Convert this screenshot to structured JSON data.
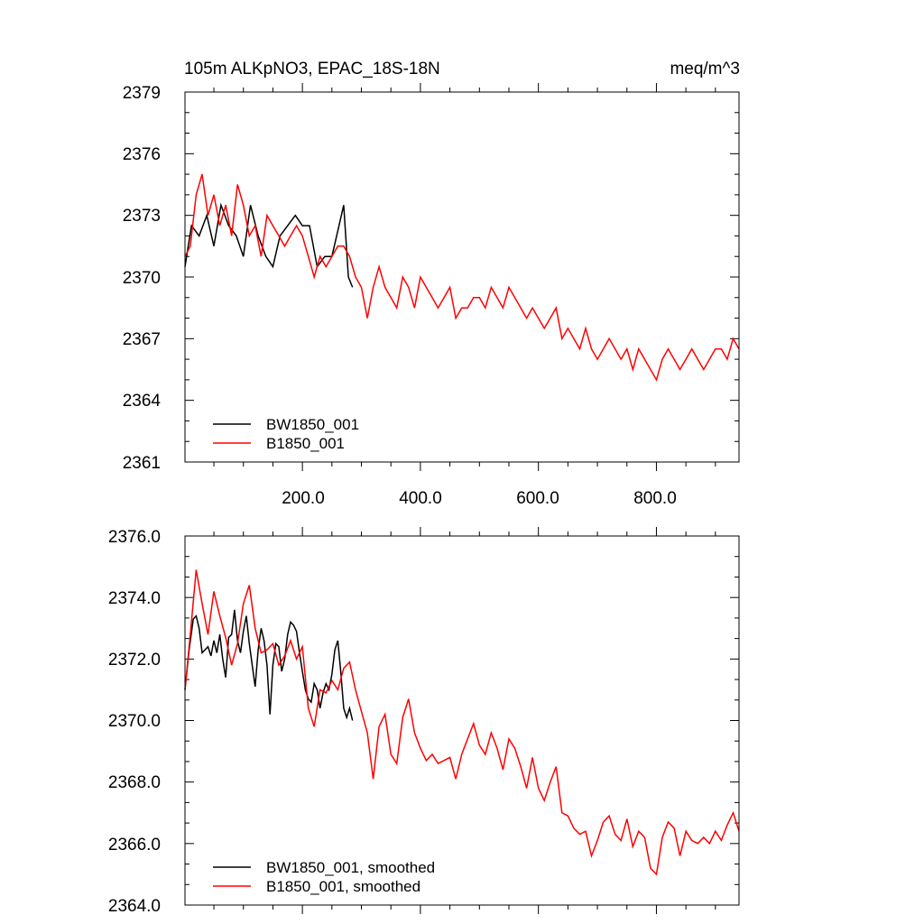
{
  "chart_data": [
    {
      "type": "line",
      "title": "105m ALKpNO3, EPAC_18S-18N",
      "units": "meq/m^3",
      "xlim": [
        1,
        940
      ],
      "ylim": [
        2361,
        2379
      ],
      "xticks": [
        200,
        400,
        600,
        800
      ],
      "xtick_labels": [
        "200.0",
        "400.0",
        "600.0",
        "800.0"
      ],
      "yticks": [
        2361,
        2364,
        2367,
        2370,
        2373,
        2376,
        2379
      ],
      "ytick_labels": [
        "2361",
        "2364",
        "2367",
        "2370",
        "2373",
        "2376",
        "2379"
      ],
      "legend_position": "bottom-left",
      "series": [
        {
          "name": "BW1850_001",
          "color": "#000000",
          "x": [
            1,
            12,
            25,
            38,
            50,
            62,
            75,
            88,
            100,
            112,
            125,
            138,
            150,
            162,
            175,
            188,
            200,
            212,
            225,
            238,
            250,
            262,
            270,
            278,
            285
          ],
          "y": [
            2370.5,
            2372.5,
            2372.0,
            2373.0,
            2371.5,
            2373.5,
            2372.5,
            2372.0,
            2371.0,
            2373.5,
            2372.0,
            2371.0,
            2370.5,
            2372.0,
            2372.5,
            2373.0,
            2372.5,
            2372.5,
            2370.5,
            2371.0,
            2371.0,
            2372.5,
            2373.5,
            2370.0,
            2369.5
          ]
        },
        {
          "name": "B1850_001",
          "color": "#ff0000",
          "x": [
            1,
            10,
            20,
            30,
            40,
            50,
            60,
            70,
            80,
            90,
            100,
            110,
            120,
            130,
            140,
            150,
            160,
            170,
            180,
            190,
            200,
            210,
            220,
            230,
            240,
            250,
            260,
            270,
            280,
            290,
            300,
            310,
            320,
            330,
            340,
            350,
            360,
            370,
            380,
            390,
            400,
            410,
            420,
            430,
            440,
            450,
            460,
            470,
            480,
            490,
            500,
            510,
            520,
            530,
            540,
            550,
            560,
            570,
            580,
            590,
            600,
            610,
            620,
            630,
            640,
            650,
            660,
            670,
            680,
            690,
            700,
            710,
            720,
            730,
            740,
            750,
            760,
            770,
            780,
            790,
            800,
            810,
            820,
            830,
            840,
            850,
            860,
            870,
            880,
            890,
            900,
            910,
            920,
            930,
            940
          ],
          "y": [
            2371.0,
            2371.5,
            2374.0,
            2375.0,
            2373.0,
            2374.0,
            2372.5,
            2373.5,
            2372.0,
            2374.5,
            2373.5,
            2372.0,
            2372.5,
            2371.0,
            2373.0,
            2372.5,
            2372.0,
            2371.5,
            2372.0,
            2372.5,
            2372.0,
            2371.0,
            2370.0,
            2371.0,
            2370.5,
            2371.0,
            2371.5,
            2371.5,
            2371.0,
            2370.0,
            2369.5,
            2368.0,
            2369.5,
            2370.5,
            2369.5,
            2369.0,
            2368.5,
            2370.0,
            2369.5,
            2368.5,
            2370.0,
            2369.5,
            2369.0,
            2368.5,
            2369.0,
            2369.5,
            2368.0,
            2368.5,
            2368.5,
            2369.0,
            2369.0,
            2368.5,
            2369.5,
            2369.0,
            2368.5,
            2369.5,
            2369.0,
            2368.5,
            2368.0,
            2368.5,
            2368.0,
            2367.5,
            2368.0,
            2368.5,
            2367.0,
            2367.5,
            2367.0,
            2366.5,
            2367.5,
            2366.5,
            2366.0,
            2366.5,
            2367.0,
            2366.5,
            2366.0,
            2366.5,
            2365.5,
            2366.5,
            2366.0,
            2365.5,
            2365.0,
            2366.0,
            2366.5,
            2366.0,
            2365.5,
            2366.0,
            2366.5,
            2366.0,
            2365.5,
            2366.0,
            2366.5,
            2366.5,
            2366.0,
            2367.0,
            2366.5
          ]
        }
      ]
    },
    {
      "type": "line",
      "xlim": [
        1,
        940
      ],
      "ylim": [
        2364,
        2376
      ],
      "yticks": [
        2364,
        2366,
        2368,
        2370,
        2372,
        2374,
        2376
      ],
      "ytick_labels": [
        "2364.0",
        "2366.0",
        "2368.0",
        "2370.0",
        "2372.0",
        "2374.0",
        "2376.0"
      ],
      "legend_position": "bottom-left",
      "series": [
        {
          "name": "BW1850_001, smoothed",
          "color": "#000000",
          "x": [
            1,
            8,
            15,
            20,
            25,
            30,
            35,
            40,
            45,
            50,
            55,
            60,
            65,
            70,
            75,
            80,
            85,
            90,
            95,
            100,
            105,
            110,
            115,
            120,
            125,
            130,
            135,
            140,
            145,
            150,
            155,
            160,
            165,
            170,
            175,
            180,
            185,
            190,
            195,
            200,
            205,
            210,
            215,
            220,
            225,
            230,
            235,
            240,
            245,
            250,
            255,
            260,
            265,
            270,
            275,
            280,
            285
          ],
          "y": [
            2371.0,
            2372.3,
            2373.3,
            2373.4,
            2373.0,
            2372.2,
            2372.3,
            2372.4,
            2372.1,
            2372.6,
            2372.2,
            2372.8,
            2372.0,
            2371.4,
            2372.7,
            2372.8,
            2373.6,
            2372.6,
            2372.2,
            2372.9,
            2373.4,
            2372.5,
            2371.8,
            2371.1,
            2372.3,
            2373.0,
            2372.6,
            2371.8,
            2370.2,
            2371.8,
            2372.5,
            2372.4,
            2371.6,
            2372.0,
            2372.8,
            2373.2,
            2373.1,
            2372.9,
            2372.2,
            2371.6,
            2371.0,
            2370.7,
            2370.6,
            2371.2,
            2371.0,
            2370.4,
            2370.9,
            2371.2,
            2371.0,
            2371.5,
            2372.3,
            2372.6,
            2371.6,
            2370.4,
            2370.1,
            2370.4,
            2370.0
          ]
        },
        {
          "name": "B1850_001, smoothed",
          "color": "#ff0000",
          "x": [
            1,
            10,
            20,
            30,
            40,
            50,
            60,
            70,
            80,
            90,
            100,
            110,
            120,
            130,
            140,
            150,
            160,
            170,
            180,
            190,
            200,
            210,
            220,
            230,
            240,
            250,
            260,
            270,
            280,
            290,
            300,
            310,
            320,
            330,
            340,
            350,
            360,
            370,
            380,
            390,
            400,
            410,
            420,
            430,
            440,
            450,
            460,
            470,
            480,
            490,
            500,
            510,
            520,
            530,
            540,
            550,
            560,
            570,
            580,
            590,
            600,
            610,
            620,
            630,
            640,
            650,
            660,
            670,
            680,
            690,
            700,
            710,
            720,
            730,
            740,
            750,
            760,
            770,
            780,
            790,
            800,
            810,
            820,
            830,
            840,
            850,
            860,
            870,
            880,
            890,
            900,
            910,
            920,
            930,
            940
          ],
          "y": [
            2371.0,
            2372.8,
            2374.9,
            2373.8,
            2372.8,
            2374.2,
            2373.4,
            2372.7,
            2371.8,
            2372.5,
            2373.8,
            2374.4,
            2373.0,
            2372.2,
            2372.3,
            2372.5,
            2371.8,
            2372.1,
            2372.6,
            2372.0,
            2372.4,
            2370.4,
            2369.8,
            2371.0,
            2370.9,
            2371.3,
            2371.0,
            2371.7,
            2371.9,
            2371.0,
            2370.3,
            2369.6,
            2368.1,
            2369.8,
            2370.2,
            2368.9,
            2368.6,
            2370.1,
            2370.7,
            2369.6,
            2369.1,
            2368.7,
            2368.9,
            2368.6,
            2368.7,
            2368.8,
            2368.1,
            2368.9,
            2369.4,
            2369.9,
            2369.2,
            2368.9,
            2369.6,
            2369.1,
            2368.4,
            2369.4,
            2369.1,
            2368.5,
            2367.8,
            2368.8,
            2367.8,
            2367.4,
            2368.0,
            2368.5,
            2367.0,
            2366.9,
            2366.5,
            2366.3,
            2366.4,
            2365.6,
            2366.1,
            2366.7,
            2366.9,
            2366.3,
            2366.1,
            2366.8,
            2365.9,
            2366.4,
            2366.2,
            2365.2,
            2365.0,
            2366.2,
            2366.7,
            2366.5,
            2365.6,
            2366.4,
            2366.1,
            2366.0,
            2366.2,
            2366.0,
            2366.4,
            2366.1,
            2366.6,
            2367.0,
            2366.4
          ]
        }
      ]
    }
  ]
}
